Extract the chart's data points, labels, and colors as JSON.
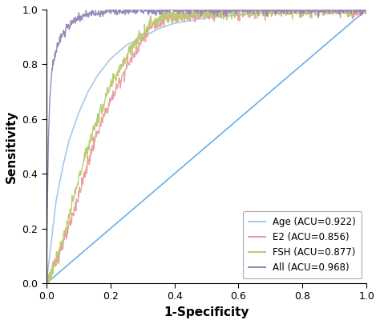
{
  "title": "",
  "xlabel": "1-Specificity",
  "ylabel": "Sensitivity",
  "xlim": [
    0,
    1.0
  ],
  "ylim": [
    0,
    1.0
  ],
  "xticks": [
    0,
    0.2,
    0.4,
    0.6,
    0.8,
    1.0
  ],
  "yticks": [
    0,
    0.2,
    0.4,
    0.6,
    0.8,
    1.0
  ],
  "curves": {
    "Age": {
      "auc": 0.922,
      "color": "#A8C8E8",
      "linewidth": 1.2,
      "smooth": true,
      "seed": 42,
      "base_points": [
        [
          0.0,
          0.0
        ],
        [
          0.005,
          0.05
        ],
        [
          0.01,
          0.1
        ],
        [
          0.02,
          0.2
        ],
        [
          0.03,
          0.3
        ],
        [
          0.05,
          0.42
        ],
        [
          0.07,
          0.52
        ],
        [
          0.1,
          0.62
        ],
        [
          0.13,
          0.7
        ],
        [
          0.16,
          0.76
        ],
        [
          0.2,
          0.82
        ],
        [
          0.25,
          0.87
        ],
        [
          0.3,
          0.9
        ],
        [
          0.35,
          0.93
        ],
        [
          0.4,
          0.95
        ],
        [
          0.5,
          0.97
        ],
        [
          0.6,
          0.98
        ],
        [
          0.7,
          0.99
        ],
        [
          0.8,
          0.995
        ],
        [
          1.0,
          1.0
        ]
      ]
    },
    "E2": {
      "auc": 0.856,
      "color": "#E8A0A0",
      "linewidth": 1.0,
      "smooth": false,
      "seed": 123,
      "base_points": [
        [
          0.0,
          0.0
        ],
        [
          0.01,
          0.02
        ],
        [
          0.02,
          0.05
        ],
        [
          0.03,
          0.08
        ],
        [
          0.05,
          0.14
        ],
        [
          0.07,
          0.2
        ],
        [
          0.09,
          0.28
        ],
        [
          0.11,
          0.36
        ],
        [
          0.13,
          0.44
        ],
        [
          0.15,
          0.52
        ],
        [
          0.17,
          0.58
        ],
        [
          0.19,
          0.64
        ],
        [
          0.21,
          0.69
        ],
        [
          0.23,
          0.74
        ],
        [
          0.25,
          0.79
        ],
        [
          0.27,
          0.83
        ],
        [
          0.29,
          0.87
        ],
        [
          0.31,
          0.91
        ],
        [
          0.33,
          0.94
        ],
        [
          0.36,
          0.96
        ],
        [
          0.4,
          0.975
        ],
        [
          0.5,
          0.985
        ],
        [
          0.6,
          0.99
        ],
        [
          0.7,
          0.995
        ],
        [
          1.0,
          1.0
        ]
      ]
    },
    "FSH": {
      "auc": 0.877,
      "color": "#B8CC70",
      "linewidth": 1.0,
      "smooth": false,
      "seed": 77,
      "base_points": [
        [
          0.0,
          0.0
        ],
        [
          0.01,
          0.02
        ],
        [
          0.02,
          0.05
        ],
        [
          0.03,
          0.09
        ],
        [
          0.05,
          0.16
        ],
        [
          0.07,
          0.24
        ],
        [
          0.09,
          0.33
        ],
        [
          0.11,
          0.42
        ],
        [
          0.13,
          0.5
        ],
        [
          0.15,
          0.57
        ],
        [
          0.17,
          0.63
        ],
        [
          0.19,
          0.69
        ],
        [
          0.21,
          0.74
        ],
        [
          0.23,
          0.79
        ],
        [
          0.25,
          0.83
        ],
        [
          0.27,
          0.87
        ],
        [
          0.29,
          0.9
        ],
        [
          0.31,
          0.93
        ],
        [
          0.33,
          0.955
        ],
        [
          0.36,
          0.97
        ],
        [
          0.4,
          0.98
        ],
        [
          0.5,
          0.988
        ],
        [
          0.6,
          0.993
        ],
        [
          0.7,
          0.997
        ],
        [
          1.0,
          1.0
        ]
      ]
    },
    "All": {
      "auc": 0.968,
      "color": "#9988BB",
      "linewidth": 1.0,
      "smooth": false,
      "seed": 200,
      "base_points": [
        [
          0.0,
          0.0
        ],
        [
          0.003,
          0.3
        ],
        [
          0.006,
          0.52
        ],
        [
          0.01,
          0.66
        ],
        [
          0.015,
          0.74
        ],
        [
          0.02,
          0.8
        ],
        [
          0.03,
          0.85
        ],
        [
          0.04,
          0.88
        ],
        [
          0.05,
          0.905
        ],
        [
          0.06,
          0.925
        ],
        [
          0.07,
          0.94
        ],
        [
          0.08,
          0.952
        ],
        [
          0.09,
          0.962
        ],
        [
          0.1,
          0.97
        ],
        [
          0.12,
          0.978
        ],
        [
          0.14,
          0.984
        ],
        [
          0.16,
          0.988
        ],
        [
          0.18,
          0.991
        ],
        [
          0.2,
          0.993
        ],
        [
          0.25,
          0.996
        ],
        [
          0.3,
          0.997
        ],
        [
          0.4,
          0.998
        ],
        [
          0.6,
          0.999
        ],
        [
          1.0,
          1.0
        ]
      ]
    }
  },
  "legend_order": [
    "Age",
    "E2",
    "FSH",
    "All"
  ],
  "legend_loc": "lower right",
  "diagonal_color": "#6AAFE6",
  "diagonal_linewidth": 1.2,
  "figsize": [
    4.74,
    4.05
  ],
  "dpi": 100,
  "noise_scale_E2": 0.012,
  "noise_scale_FSH": 0.012,
  "noise_scale_All": 0.008
}
